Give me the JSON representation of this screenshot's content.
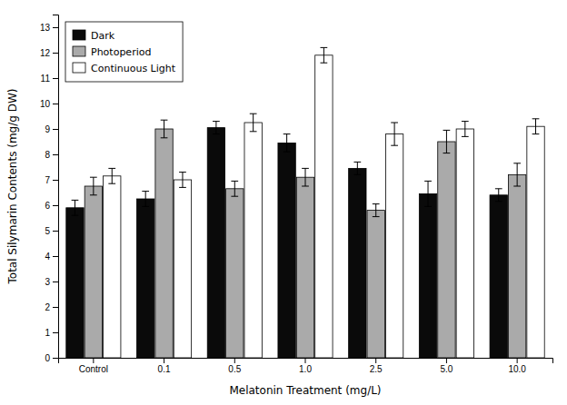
{
  "chart_data": {
    "type": "bar",
    "categories": [
      "Control",
      "0.1",
      "0.5",
      "1.0",
      "2.5",
      "5.0",
      "10.0"
    ],
    "series": [
      {
        "name": "Dark",
        "color": "#0a0a0a",
        "values": [
          5.9,
          6.25,
          9.05,
          8.45,
          7.45,
          6.45,
          6.4
        ],
        "errors": [
          0.3,
          0.3,
          0.25,
          0.35,
          0.25,
          0.5,
          0.25
        ]
      },
      {
        "name": "Photoperiod",
        "color": "#aaaaaa",
        "values": [
          6.75,
          9.0,
          6.65,
          7.1,
          5.8,
          8.5,
          7.2
        ],
        "errors": [
          0.35,
          0.35,
          0.3,
          0.35,
          0.25,
          0.45,
          0.45
        ]
      },
      {
        "name": "Continuous Light",
        "color": "#ffffff",
        "values": [
          7.15,
          7.0,
          9.25,
          11.9,
          8.8,
          9.0,
          9.1
        ],
        "errors": [
          0.3,
          0.3,
          0.35,
          0.3,
          0.45,
          0.3,
          0.3
        ]
      }
    ],
    "xlabel": "Melatonin Treatment (mg/L)",
    "ylabel": "Total Silymarin Contents (mg/g DW)",
    "ylim": [
      0,
      13.5
    ],
    "yticks": [
      0,
      1,
      2,
      3,
      4,
      5,
      6,
      7,
      8,
      9,
      10,
      11,
      12,
      13
    ],
    "grid": false,
    "legend": "upper left"
  }
}
